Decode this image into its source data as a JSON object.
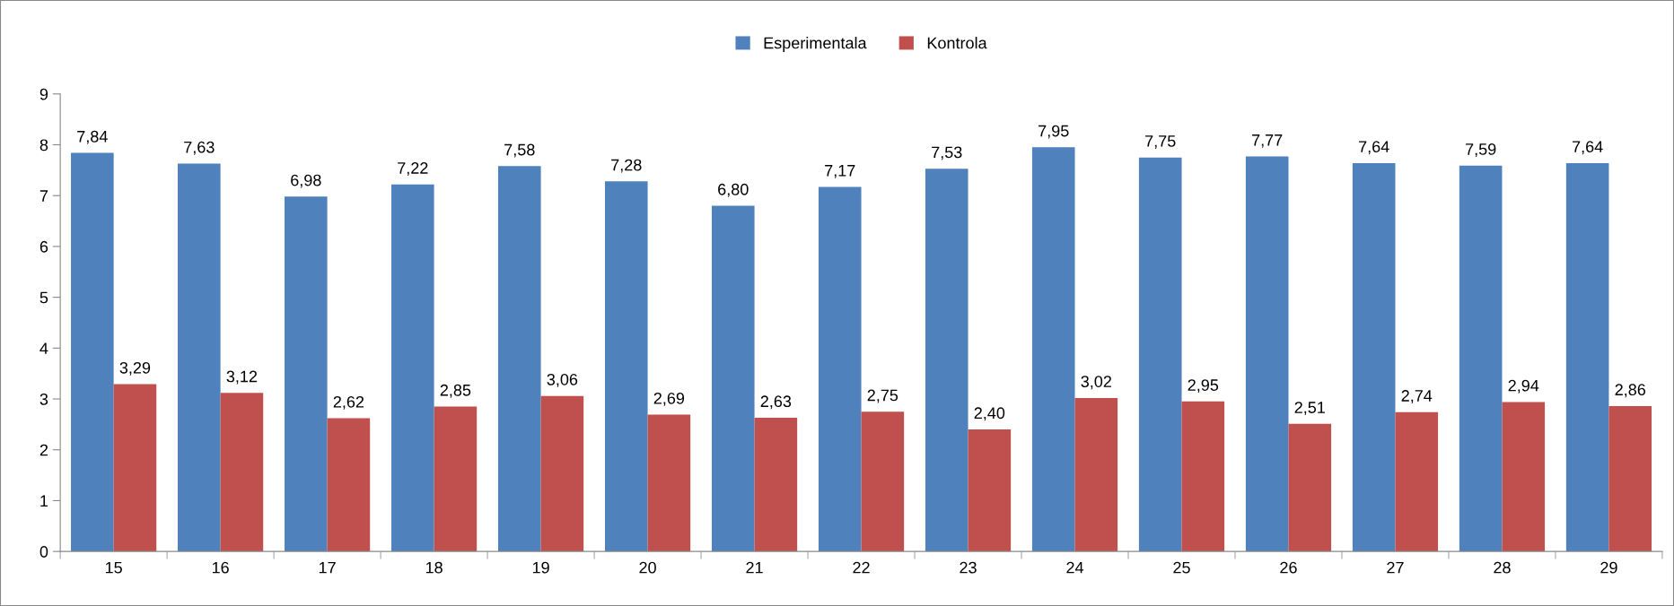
{
  "chart_data": {
    "type": "bar",
    "categories": [
      "15",
      "16",
      "17",
      "18",
      "19",
      "20",
      "21",
      "22",
      "23",
      "24",
      "25",
      "26",
      "27",
      "28",
      "29"
    ],
    "series": [
      {
        "name": "Esperimentala",
        "color": "#4f81bd",
        "values": [
          7.84,
          7.63,
          6.98,
          7.22,
          7.58,
          7.28,
          6.8,
          7.17,
          7.53,
          7.95,
          7.75,
          7.77,
          7.64,
          7.59,
          7.64
        ],
        "value_labels": [
          "7,84",
          "7,63",
          "6,98",
          "7,22",
          "7,58",
          "7,28",
          "6,80",
          "7,17",
          "7,53",
          "7,95",
          "7,75",
          "7,77",
          "7,64",
          "7,59",
          "7,64"
        ]
      },
      {
        "name": "Kontrola",
        "color": "#c0504d",
        "values": [
          3.29,
          3.12,
          2.62,
          2.85,
          3.06,
          2.69,
          2.63,
          2.75,
          2.4,
          3.02,
          2.95,
          2.51,
          2.74,
          2.94,
          2.86
        ],
        "value_labels": [
          "3,29",
          "3,12",
          "2,62",
          "2,85",
          "3,06",
          "2,69",
          "2,63",
          "2,75",
          "2,40",
          "3,02",
          "2,95",
          "2,51",
          "2,74",
          "2,94",
          "2,86"
        ]
      }
    ],
    "ylim": [
      0,
      9
    ],
    "yticks": [
      0,
      1,
      2,
      3,
      4,
      5,
      6,
      7,
      8,
      9
    ],
    "grid": false,
    "legend": "top"
  }
}
